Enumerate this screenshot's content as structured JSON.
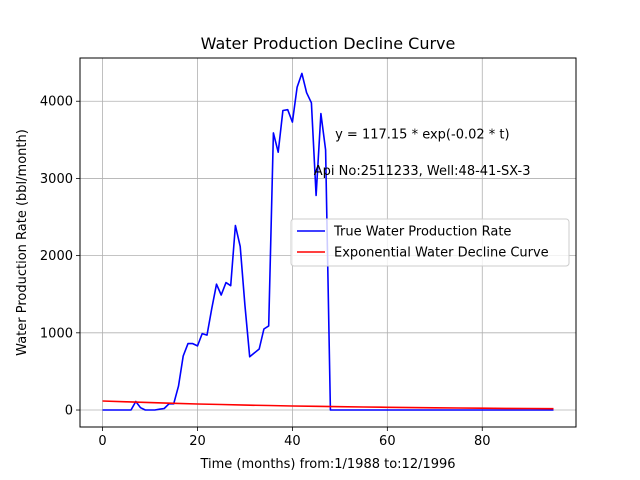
{
  "chart_data": {
    "type": "line",
    "title": "Water Production Decline Curve",
    "xlabel": "Time (months) from:1/1988 to:12/1996",
    "ylabel": "Water Production Rate (bbl/month)",
    "xlim": [
      -4.75,
      99.75
    ],
    "ylim": [
      -220,
      4560
    ],
    "xticks": [
      0,
      20,
      40,
      60,
      80
    ],
    "yticks": [
      0,
      1000,
      2000,
      3000,
      4000
    ],
    "grid": true,
    "legend_position": "center-right",
    "annotations": [
      {
        "text": "y = 117.15 * exp(-0.02 * t)",
        "x": 49,
        "y": 3580
      },
      {
        "text": "Api No:2511233, Well:48-41-SX-3",
        "x": 44.5,
        "y": 3110
      }
    ],
    "series": [
      {
        "name": "True Water Production Rate",
        "color": "#0000ff",
        "x": [
          0,
          1,
          2,
          3,
          4,
          5,
          6,
          7,
          8,
          9,
          10,
          11,
          12,
          13,
          14,
          15,
          16,
          17,
          18,
          19,
          20,
          21,
          22,
          23,
          24,
          25,
          26,
          27,
          28,
          29,
          30,
          31,
          32,
          33,
          34,
          35,
          36,
          37,
          38,
          39,
          40,
          41,
          42,
          43,
          44,
          45,
          46,
          47,
          48,
          49,
          50,
          55,
          60,
          65,
          70,
          75,
          80,
          85,
          90,
          95
        ],
        "y": [
          0,
          0,
          0,
          0,
          0,
          0,
          0,
          110,
          30,
          0,
          0,
          0,
          10,
          20,
          80,
          80,
          310,
          700,
          860,
          860,
          830,
          990,
          970,
          1310,
          1630,
          1490,
          1650,
          1610,
          2390,
          2120,
          1360,
          690,
          740,
          790,
          1050,
          1090,
          3590,
          3340,
          3880,
          3890,
          3730,
          4180,
          4360,
          4110,
          3980,
          2780,
          3840,
          3370,
          0,
          0,
          0,
          0,
          0,
          0,
          0,
          0,
          0,
          0,
          0,
          0
        ]
      },
      {
        "name": "Exponential Water Decline Curve",
        "color": "#ff0000",
        "x": [
          0,
          5,
          10,
          15,
          20,
          25,
          30,
          35,
          40,
          45,
          50,
          55,
          60,
          65,
          70,
          75,
          80,
          85,
          90,
          95
        ],
        "y": [
          117.15,
          105.99,
          95.91,
          86.78,
          78.52,
          71.05,
          64.29,
          58.17,
          52.63,
          47.62,
          43.09,
          38.99,
          35.28,
          31.92,
          28.88,
          26.13,
          23.65,
          21.4,
          19.36,
          17.52
        ]
      }
    ]
  }
}
